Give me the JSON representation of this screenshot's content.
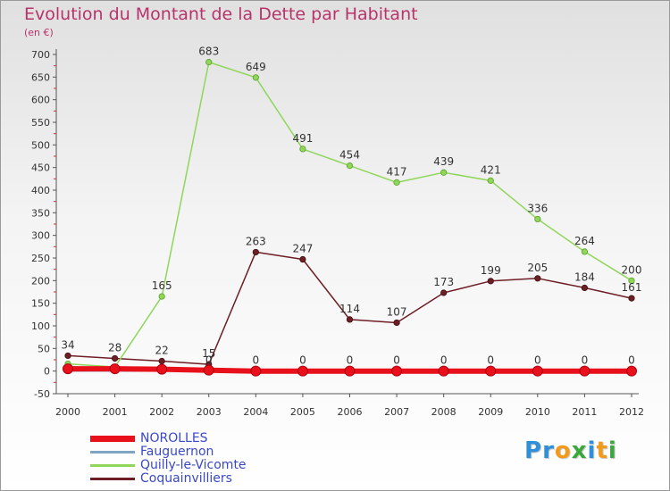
{
  "header": {
    "title": "Evolution du Montant de la Dette par Habitant",
    "unit": "(en €)"
  },
  "logo": {
    "text": "Proxiti",
    "letters": [
      "P",
      "r",
      "o",
      "x",
      "i",
      "t",
      "i"
    ],
    "letter_colors": [
      "#2f8fd8",
      "#2f8fd8",
      "#f29a1a",
      "#3aa83a",
      "#2f8fd8",
      "#f29a1a",
      "#3aa83a"
    ]
  },
  "chart_data": {
    "type": "line",
    "title": "Evolution du Montant de la Dette par Habitant",
    "xlabel": "",
    "ylabel": "(en €)",
    "x": [
      "2000",
      "2001",
      "2002",
      "2003",
      "2004",
      "2005",
      "2006",
      "2007",
      "2008",
      "2009",
      "2010",
      "2011",
      "2012"
    ],
    "ylim": [
      -50,
      700
    ],
    "yticks": [
      -50,
      0,
      50,
      100,
      150,
      200,
      250,
      300,
      350,
      400,
      450,
      500,
      550,
      600,
      650,
      700
    ],
    "grid": false,
    "legend": "bottom-left",
    "series": [
      {
        "name": "NOROLLES",
        "color": "#e8101a",
        "values": [
          5,
          5,
          4,
          2,
          0,
          0,
          0,
          0,
          0,
          0,
          0,
          0,
          0
        ],
        "labels": [
          "",
          "",
          "",
          "",
          "",
          "",
          "",
          "",
          "",
          "",
          "",
          "",
          ""
        ]
      },
      {
        "name": "Fauguernon",
        "color": "#7fa4c4",
        "values": [
          0,
          0,
          0,
          0,
          0,
          0,
          0,
          0,
          0,
          0,
          0,
          0,
          0
        ],
        "labels": [
          "",
          "",
          "",
          "0",
          "0",
          "0",
          "0",
          "0",
          "0",
          "0",
          "0",
          "0",
          "0"
        ]
      },
      {
        "name": "Quilly-le-Vicomte",
        "color": "#8fd65a",
        "values": [
          16,
          9,
          165,
          683,
          649,
          491,
          454,
          417,
          439,
          421,
          336,
          264,
          200
        ],
        "labels": [
          "",
          "",
          "165",
          "683",
          "649",
          "491",
          "454",
          "417",
          "439",
          "421",
          "336",
          "264",
          "200"
        ]
      },
      {
        "name": "Coquainvilliers",
        "color": "#6e1f25",
        "values": [
          34,
          28,
          22,
          15,
          263,
          247,
          114,
          107,
          173,
          199,
          205,
          184,
          161
        ],
        "labels": [
          "34",
          "28",
          "22",
          "15",
          "263",
          "247",
          "114",
          "107",
          "173",
          "199",
          "205",
          "184",
          "161"
        ]
      }
    ]
  }
}
